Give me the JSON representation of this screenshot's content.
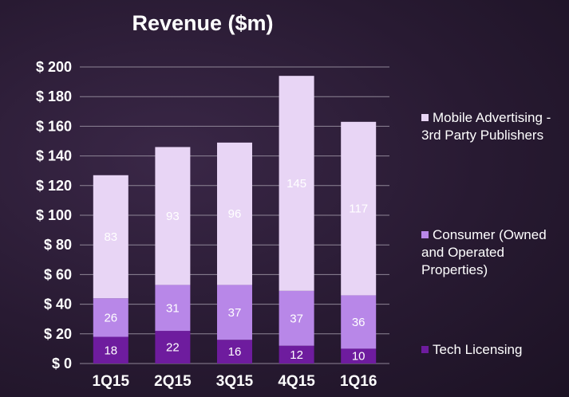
{
  "chart_data": {
    "type": "bar",
    "stacked": true,
    "title": "Revenue ($m)",
    "xlabel": "",
    "ylabel": "",
    "categories": [
      "1Q15",
      "2Q15",
      "3Q15",
      "4Q15",
      "1Q16"
    ],
    "ylim": [
      0,
      200
    ],
    "yticks": [
      0,
      20,
      40,
      60,
      80,
      100,
      120,
      140,
      160,
      180,
      200
    ],
    "ytick_labels": [
      "$ 0",
      "$ 20",
      "$ 40",
      "$ 60",
      "$ 80",
      "$ 100",
      "$ 120",
      "$ 140",
      "$ 160",
      "$ 180",
      "$ 200"
    ],
    "grid": true,
    "legend_position": "right",
    "series": [
      {
        "name": "Tech Licensing",
        "values": [
          18,
          22,
          16,
          12,
          10
        ],
        "color": "#6e1c9e"
      },
      {
        "name": "Consumer (Owned and Operated Properties)",
        "values": [
          26,
          31,
          37,
          37,
          36
        ],
        "color": "#b887e8"
      },
      {
        "name": "Mobile Advertising - 3rd Party Publishers",
        "values": [
          83,
          93,
          96,
          145,
          117
        ],
        "color": "#e8d5f5"
      }
    ]
  }
}
